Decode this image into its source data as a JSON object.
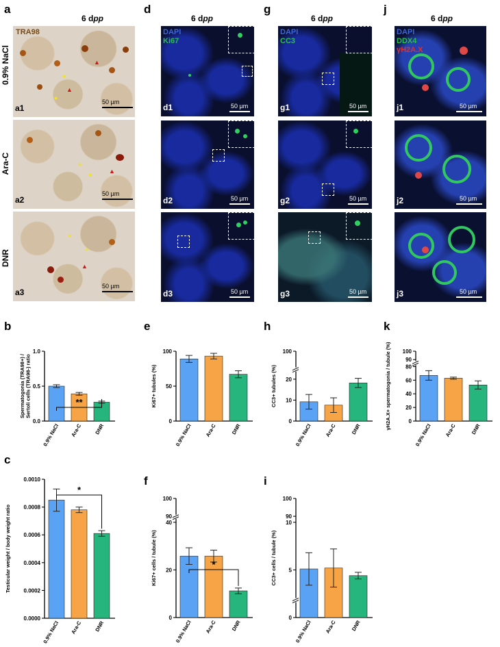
{
  "figure": {
    "panels": {
      "a": "a",
      "d": "d",
      "g": "g",
      "j": "j",
      "b": "b",
      "e": "e",
      "h": "h",
      "k": "k",
      "c": "c",
      "f": "f",
      "i": "i"
    },
    "column_title": "6 dpp",
    "row_labels": [
      "0.9% NaCl",
      "Ara-C",
      "DNR"
    ],
    "scale_bar": "50 µm",
    "stains": {
      "a": [
        "TRA98"
      ],
      "d": [
        "DAPI",
        "Ki67"
      ],
      "g": [
        "DAPI",
        "CC3"
      ],
      "j": [
        "DAPI",
        "DDX4",
        "γH2A.X"
      ]
    },
    "sublabels": {
      "a": [
        "a1",
        "a2",
        "a3"
      ],
      "d": [
        "d1",
        "d2",
        "d3"
      ],
      "g": [
        "g1",
        "g2",
        "g3"
      ],
      "j": [
        "j1",
        "j2",
        "j3"
      ]
    },
    "colors": {
      "nacl": "#5aa2f4",
      "arac": "#f6a445",
      "dnr": "#25b57d",
      "dapi": "#3a66e0",
      "green": "#27c14a",
      "red": "#e03030"
    }
  },
  "chart_data": [
    {
      "panel": "b",
      "type": "bar",
      "categories": [
        "0.9% NaCl",
        "Ara-C",
        "DNR"
      ],
      "values": [
        0.5,
        0.39,
        0.27
      ],
      "errors": [
        0.02,
        0.02,
        0.015
      ],
      "ylabel": "Spermatogonia (TRA98+) / Sertoli cells (TRA98-) ratio",
      "ylim": [
        0,
        1.0
      ],
      "yticks": [
        "0.0",
        "0.5",
        "1.0"
      ],
      "significance": "**"
    },
    {
      "panel": "e",
      "type": "bar",
      "categories": [
        "0.9% NaCl",
        "Ara-C",
        "DNR"
      ],
      "values": [
        89,
        93,
        67
      ],
      "errors": [
        5,
        4,
        5
      ],
      "ylabel": "Ki67+ tubules (%)",
      "ylim": [
        0,
        100
      ],
      "yticks": [
        "0",
        "50",
        "100"
      ]
    },
    {
      "panel": "h",
      "type": "bar",
      "categories": [
        "0.9% NaCl",
        "Ara-C",
        "DNR"
      ],
      "values": [
        9.2,
        7.6,
        18.2
      ],
      "errors": [
        3.5,
        3.5,
        2.2
      ],
      "ylabel": "CC3+ tubules (%)",
      "ylim": [
        0,
        100
      ],
      "yticks": [
        "0",
        "10",
        "20",
        "100"
      ]
    },
    {
      "panel": "k",
      "type": "bar",
      "categories": [
        "0.9% NaCl",
        "Ara-C",
        "DNR"
      ],
      "values": [
        67,
        63,
        53
      ],
      "errors": [
        7,
        1.5,
        6
      ],
      "ylabel": "γH2A.X+ spermatogonia / tubule (%)",
      "ylim": [
        0,
        100
      ],
      "yticks": [
        "0",
        "20",
        "40",
        "60",
        "80",
        "90",
        "100"
      ]
    },
    {
      "panel": "c",
      "type": "bar",
      "categories": [
        "0.9% NaCl",
        "Ara-C",
        "DNR"
      ],
      "values": [
        0.00085,
        0.00078,
        0.00061
      ],
      "errors": [
        8e-05,
        2e-05,
        2e-05
      ],
      "ylabel": "Testicular weight / body weight ratio",
      "ylim": [
        0,
        0.001
      ],
      "yticks": [
        "0.0000",
        "0.0002",
        "0.0004",
        "0.0006",
        "0.0008",
        "0.0010"
      ],
      "significance": "*"
    },
    {
      "panel": "f",
      "type": "bar",
      "categories": [
        "0.9% NaCl",
        "Ara-C",
        "DNR"
      ],
      "values": [
        25.8,
        25.8,
        11.2
      ],
      "errors": [
        3.5,
        2.5,
        1.2
      ],
      "ylabel": "Ki67+ cells / tubule (%)",
      "ylim": [
        0,
        100
      ],
      "yticks": [
        "0",
        "20",
        "40",
        "90",
        "100"
      ],
      "significance": "*"
    },
    {
      "panel": "i",
      "type": "bar",
      "categories": [
        "0.9% NaCl",
        "Ara-C",
        "DNR"
      ],
      "values": [
        5.1,
        5.2,
        4.4
      ],
      "errors": [
        1.7,
        2.0,
        0.35
      ],
      "ylabel": "CC3+ cells / tubule (%)",
      "ylim": [
        0,
        100
      ],
      "yticks": [
        "0",
        "5",
        "10",
        "90",
        "100"
      ]
    }
  ]
}
